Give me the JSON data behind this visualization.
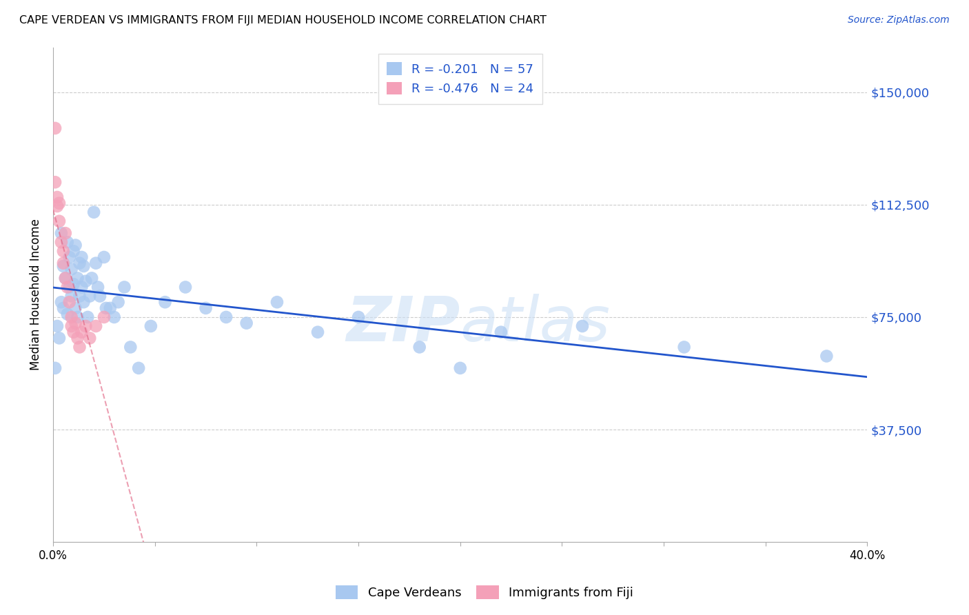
{
  "title": "CAPE VERDEAN VS IMMIGRANTS FROM FIJI MEDIAN HOUSEHOLD INCOME CORRELATION CHART",
  "source": "Source: ZipAtlas.com",
  "ylabel": "Median Household Income",
  "yticks": [
    37500,
    75000,
    112500,
    150000
  ],
  "ytick_labels": [
    "$37,500",
    "$75,000",
    "$112,500",
    "$150,000"
  ],
  "xmin": 0.0,
  "xmax": 0.4,
  "ymin": 0,
  "ymax": 165000,
  "color_blue": "#a8c8f0",
  "color_pink": "#f4a0b8",
  "line_blue": "#2255cc",
  "line_pink": "#e06080",
  "watermark_color": "#cce0f5",
  "cape_verdean_x": [
    0.001,
    0.002,
    0.003,
    0.004,
    0.004,
    0.005,
    0.005,
    0.006,
    0.007,
    0.007,
    0.008,
    0.008,
    0.009,
    0.009,
    0.01,
    0.01,
    0.011,
    0.011,
    0.012,
    0.012,
    0.013,
    0.013,
    0.014,
    0.014,
    0.015,
    0.015,
    0.016,
    0.017,
    0.018,
    0.019,
    0.02,
    0.021,
    0.022,
    0.023,
    0.025,
    0.026,
    0.028,
    0.03,
    0.032,
    0.035,
    0.038,
    0.042,
    0.048,
    0.055,
    0.065,
    0.075,
    0.085,
    0.095,
    0.11,
    0.13,
    0.15,
    0.18,
    0.2,
    0.22,
    0.26,
    0.31,
    0.38
  ],
  "cape_verdean_y": [
    58000,
    72000,
    68000,
    80000,
    103000,
    78000,
    92000,
    88000,
    100000,
    76000,
    85000,
    95000,
    91000,
    82000,
    97000,
    86000,
    99000,
    78000,
    88000,
    75000,
    93000,
    82000,
    85000,
    95000,
    80000,
    92000,
    87000,
    75000,
    82000,
    88000,
    110000,
    93000,
    85000,
    82000,
    95000,
    78000,
    78000,
    75000,
    80000,
    85000,
    65000,
    58000,
    72000,
    80000,
    85000,
    78000,
    75000,
    73000,
    80000,
    70000,
    75000,
    65000,
    58000,
    70000,
    72000,
    65000,
    62000
  ],
  "fiji_x": [
    0.001,
    0.001,
    0.002,
    0.002,
    0.003,
    0.003,
    0.004,
    0.005,
    0.005,
    0.006,
    0.006,
    0.007,
    0.008,
    0.009,
    0.009,
    0.01,
    0.011,
    0.012,
    0.013,
    0.014,
    0.016,
    0.018,
    0.021,
    0.025
  ],
  "fiji_y": [
    138000,
    120000,
    115000,
    112000,
    113000,
    107000,
    100000,
    97000,
    93000,
    103000,
    88000,
    85000,
    80000,
    75000,
    72000,
    70000,
    73000,
    68000,
    65000,
    70000,
    72000,
    68000,
    72000,
    75000
  ],
  "legend_r1": "-0.201",
  "legend_n1": "57",
  "legend_r2": "-0.476",
  "legend_n2": "24",
  "blue_label": "Cape Verdeans",
  "pink_label": "Immigrants from Fiji"
}
